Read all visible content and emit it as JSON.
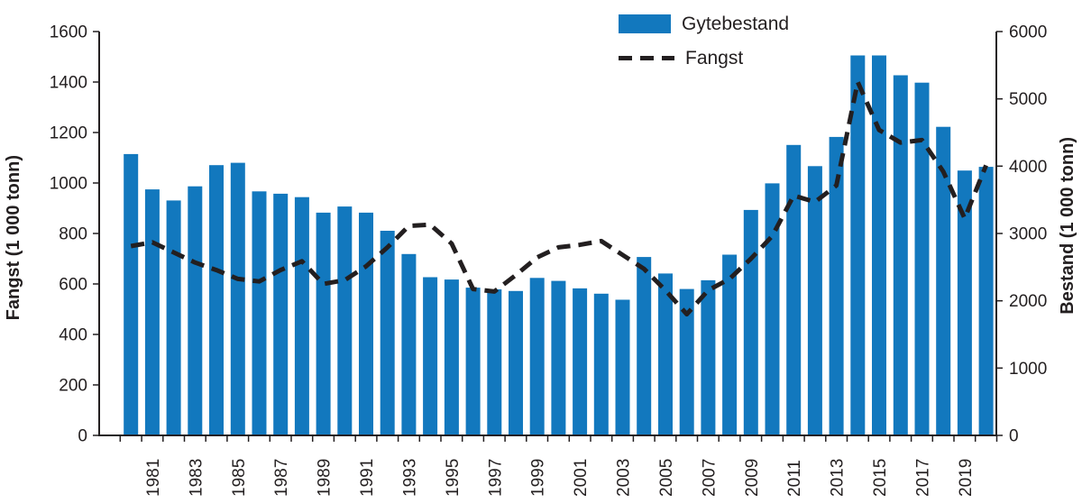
{
  "legend": {
    "gytebestand_label": "Gytebestand",
    "fangst_label": "Fangst"
  },
  "axes": {
    "left_title": "Fangst (1 000 tonn)",
    "right_title": "Bestand (1 000 tonn)"
  },
  "colors": {
    "bar": "#1278be",
    "line": "#231f20",
    "axis": "#231f20"
  },
  "chart_data": {
    "type": "bar",
    "subtype": "bar+dashed-line combo",
    "x": [
      1980,
      1981,
      1982,
      1983,
      1984,
      1985,
      1986,
      1987,
      1988,
      1989,
      1990,
      1991,
      1992,
      1993,
      1994,
      1995,
      1996,
      1997,
      1998,
      1999,
      2000,
      2001,
      2002,
      2003,
      2004,
      2005,
      2006,
      2007,
      2008,
      2009,
      2010,
      2011,
      2012,
      2013,
      2014,
      2015,
      2016,
      2017,
      2018,
      2019,
      2020
    ],
    "x_tick_labels": [
      1981,
      1983,
      1985,
      1987,
      1989,
      1991,
      1993,
      1995,
      1997,
      1999,
      2001,
      2003,
      2005,
      2007,
      2009,
      2011,
      2013,
      2015,
      2017,
      2019
    ],
    "series": [
      {
        "name": "Gytebestand",
        "type": "bar",
        "axis": "right",
        "values": [
          4180,
          3655,
          3490,
          3700,
          4015,
          4050,
          3625,
          3590,
          3540,
          3310,
          3400,
          3310,
          3040,
          2695,
          2350,
          2315,
          2195,
          2170,
          2145,
          2340,
          2295,
          2185,
          2105,
          2015,
          2650,
          2405,
          2175,
          2305,
          2685,
          3350,
          3745,
          4315,
          4000,
          4435,
          5645,
          5645,
          5350,
          5240,
          4585,
          3935,
          3990
        ]
      },
      {
        "name": "Fangst",
        "type": "line-dashed",
        "axis": "left",
        "values": [
          750,
          765,
          725,
          685,
          655,
          620,
          610,
          655,
          690,
          600,
          615,
          670,
          745,
          830,
          835,
          760,
          580,
          570,
          635,
          705,
          745,
          755,
          770,
          715,
          660,
          575,
          480,
          575,
          620,
          700,
          790,
          950,
          925,
          990,
          1400,
          1210,
          1160,
          1170,
          1045,
          860,
          1070
        ]
      }
    ],
    "left_axis": {
      "label": "Fangst (1 000 tonn)",
      "min": 0,
      "max": 1600,
      "step": 200,
      "tick_labels": [
        "0",
        "200",
        "400",
        "600",
        "800",
        "1000",
        "1200",
        "1400",
        "1600"
      ]
    },
    "right_axis": {
      "label": "Bestand (1 000 tonn)",
      "min": 0,
      "max": 6000,
      "step": 1000,
      "tick_labels": [
        "0",
        "1000",
        "2000",
        "3000",
        "4000",
        "5000",
        "6000"
      ]
    },
    "grid": false,
    "legend_position": "top-center"
  }
}
